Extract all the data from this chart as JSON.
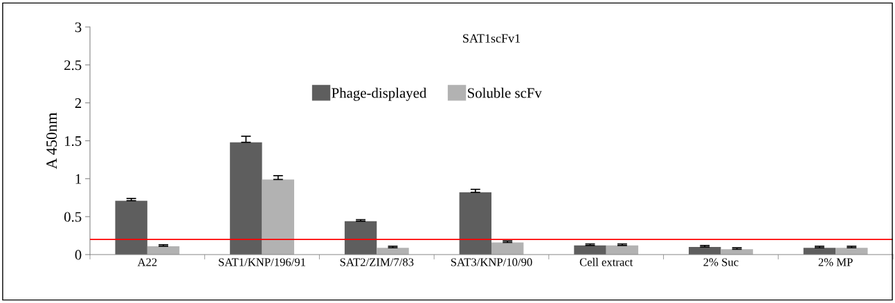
{
  "chart_data": {
    "type": "bar",
    "title": "SAT1scFv1",
    "ylabel": "A 450nm",
    "categories": [
      "A22",
      "SAT1/KNP/196/91",
      "SAT2/ZIM/7/83",
      "SAT3/KNP/10/90",
      "Cell extract",
      "2% Suc",
      "2% MP"
    ],
    "series": [
      {
        "name": "Phage-displayed",
        "color": "#5e5e5e",
        "values": [
          0.71,
          1.48,
          0.44,
          0.82,
          0.12,
          0.1,
          0.09
        ],
        "errors": [
          0.03,
          0.08,
          0.02,
          0.04,
          0.02,
          0.02,
          0.02
        ]
      },
      {
        "name": "Soluble scFv",
        "color": "#b2b2b2",
        "values": [
          0.11,
          0.99,
          0.09,
          0.16,
          0.12,
          0.07,
          0.09
        ],
        "errors": [
          0.02,
          0.05,
          0.02,
          0.02,
          0.02,
          0.02,
          0.02
        ]
      }
    ],
    "ylim": [
      0,
      3
    ],
    "yticks": [
      0,
      0.5,
      1,
      1.5,
      2,
      2.5,
      3
    ],
    "ref_lines": [
      {
        "axis": "y",
        "value": 0.2,
        "color": "#ff0000"
      }
    ],
    "grid": false,
    "legend": "top"
  }
}
